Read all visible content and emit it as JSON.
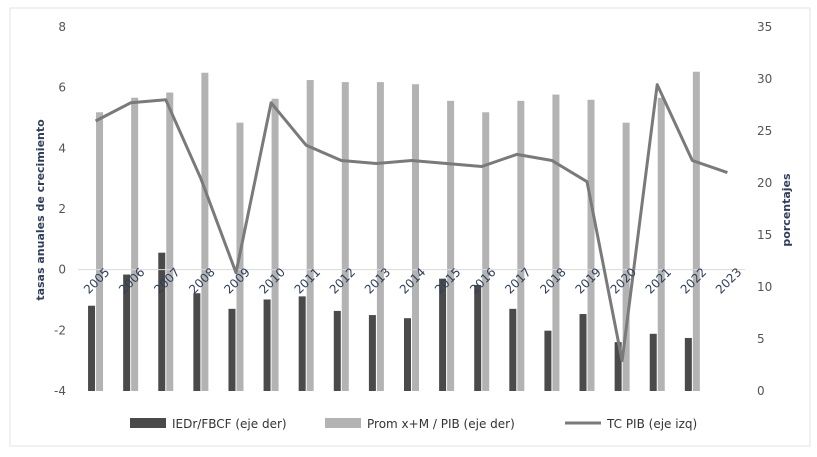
{
  "chart_data": {
    "type": "bar",
    "categories": [
      "2005",
      "2006",
      "2007",
      "2008",
      "2009",
      "2010",
      "2011",
      "2012",
      "2013",
      "2014",
      "2015",
      "2016",
      "2017",
      "2018",
      "2019",
      "2020",
      "2021",
      "2022",
      "2023"
    ],
    "y_left": {
      "label": "tasas anuales de crecimiento",
      "min": -4,
      "max": 8,
      "ticks": [
        -4,
        -2,
        0,
        2,
        4,
        6,
        8
      ]
    },
    "y_right": {
      "label": "porcentajes",
      "min": 0,
      "max": 35,
      "ticks": [
        0,
        5,
        10,
        15,
        20,
        25,
        30,
        35
      ]
    },
    "series": [
      {
        "name": "IEDr/FBCF (eje der)",
        "axis": "right",
        "kind": "bar",
        "color": "#4a4a4a",
        "values": [
          8.2,
          11.2,
          13.3,
          9.4,
          7.9,
          8.8,
          9.1,
          7.7,
          7.3,
          7.0,
          10.8,
          10.2,
          7.9,
          5.8,
          7.4,
          4.7,
          5.5,
          5.1,
          null
        ]
      },
      {
        "name": "Prom x+M / PIB (eje der)",
        "axis": "right",
        "kind": "bar",
        "color": "#b3b3b3",
        "values": [
          26.8,
          28.2,
          28.7,
          30.6,
          25.8,
          28.1,
          29.9,
          29.7,
          29.7,
          29.5,
          27.9,
          26.8,
          27.9,
          28.5,
          28.0,
          25.8,
          28.2,
          30.7,
          null
        ]
      },
      {
        "name": "TC PIB (eje izq)",
        "axis": "left",
        "kind": "line",
        "color": "#7a7a7a",
        "values": [
          4.9,
          5.5,
          5.6,
          3.0,
          -0.1,
          5.5,
          4.1,
          3.6,
          3.5,
          3.6,
          3.5,
          3.4,
          3.8,
          3.6,
          2.9,
          -3.0,
          6.1,
          3.6,
          3.2
        ]
      }
    ],
    "grid": false,
    "legend": "bottom"
  },
  "colors": {
    "axis": "#d9d9d9",
    "frame": "#e3e3e3"
  }
}
